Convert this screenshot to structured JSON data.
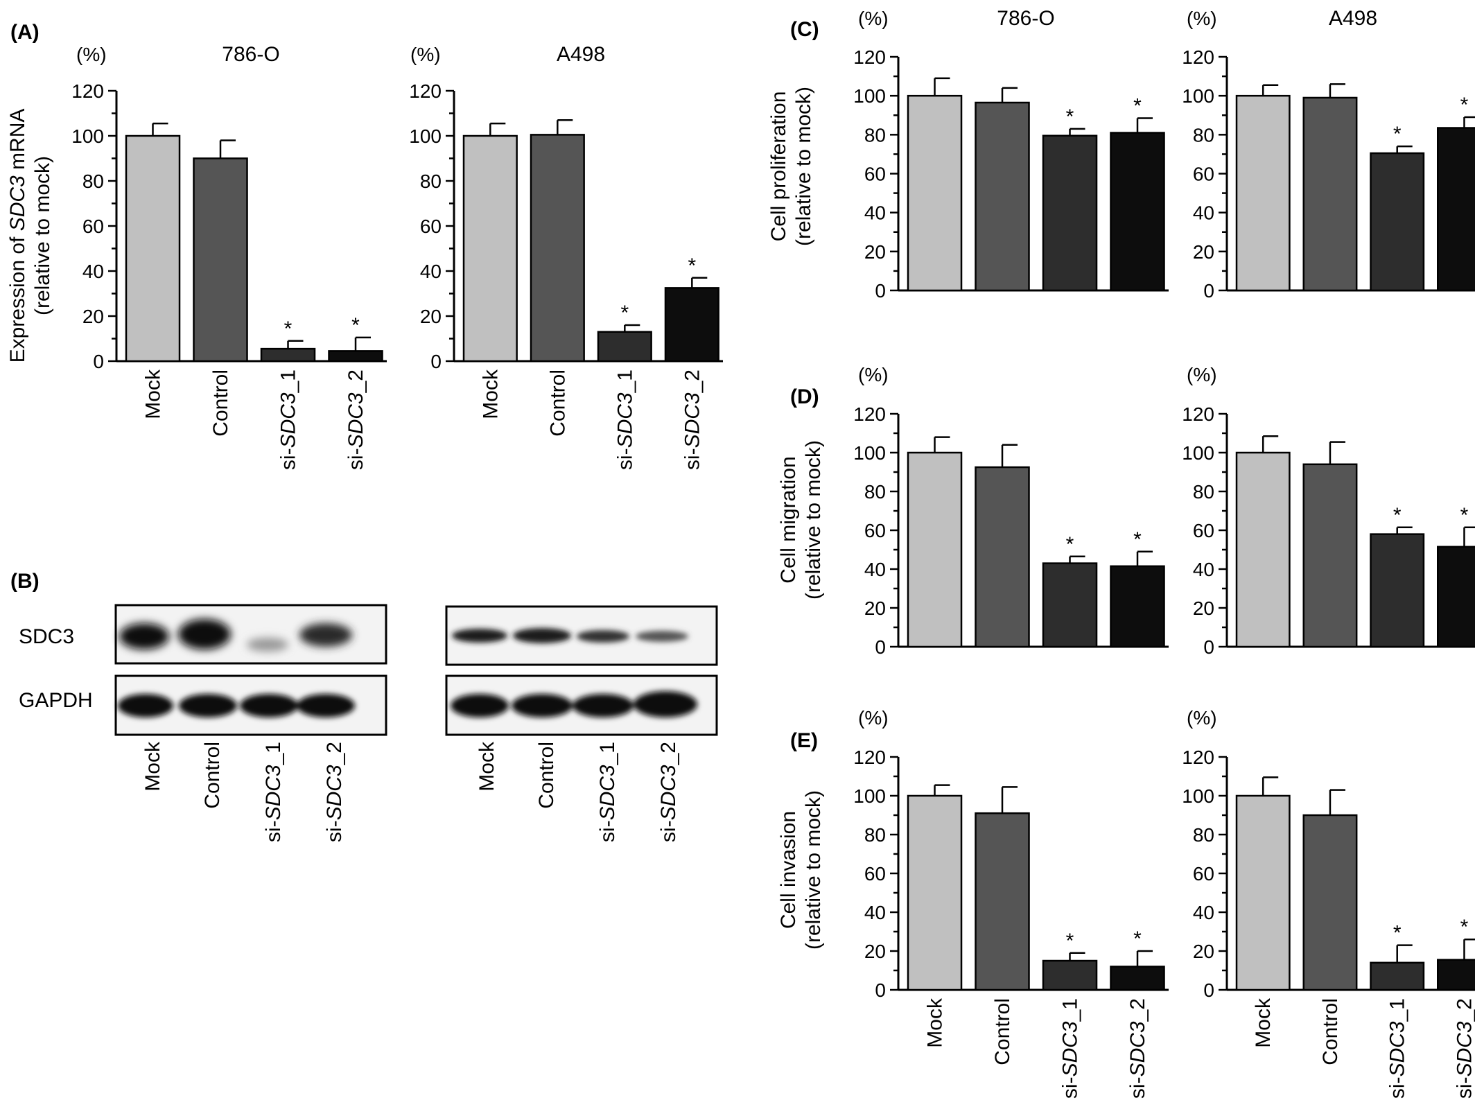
{
  "panels": {
    "A": {
      "letter": "(A)",
      "unit": "(%)",
      "ylabel_pre": "Expression of ",
      "ylabel_gene": "SDC3",
      "ylabel_post": " mRNA",
      "ylabel_line2": "(relative to mock)"
    },
    "B": {
      "letter": "(B)"
    },
    "C": {
      "letter": "(C)",
      "unit": "(%)",
      "ylabel_line1": "Cell proliferation",
      "ylabel_line2": "(relative to mock)"
    },
    "D": {
      "letter": "(D)",
      "unit": "(%)",
      "ylabel_line1": "Cell migration",
      "ylabel_line2": "(relative to mock)"
    },
    "E": {
      "letter": "(E)",
      "unit": "(%)",
      "ylabel_line1": "Cell invasion",
      "ylabel_line2": "(relative to mock)"
    }
  },
  "cell_lines": [
    "786-O",
    "A498"
  ],
  "categories": [
    {
      "pre": "",
      "italic": "",
      "post": "Mock"
    },
    {
      "pre": "",
      "italic": "",
      "post": "Control"
    },
    {
      "pre": "si-",
      "italic": "SDC3",
      "post": "_1"
    },
    {
      "pre": "si-",
      "italic": "SDC3",
      "post": "_2"
    }
  ],
  "star": "*",
  "western_blot": {
    "bands": [
      "SDC3",
      "GAPDH"
    ]
  },
  "colors": {
    "bars": [
      "#c0c0c0",
      "#555555",
      "#2d2d2d",
      "#0d0d0d"
    ]
  },
  "chart_data": [
    {
      "type": "bar",
      "panel": "A",
      "title": "786-O",
      "ylim": [
        0,
        120
      ],
      "yticks": [
        0,
        20,
        40,
        60,
        80,
        100,
        120
      ],
      "values": [
        100,
        90,
        5.5,
        4.5
      ],
      "errors": [
        5.5,
        8,
        3.5,
        6
      ],
      "significant": [
        false,
        false,
        true,
        true
      ]
    },
    {
      "type": "bar",
      "panel": "A",
      "title": "A498",
      "ylim": [
        0,
        120
      ],
      "yticks": [
        0,
        20,
        40,
        60,
        80,
        100,
        120
      ],
      "values": [
        100,
        100.5,
        13,
        32.5
      ],
      "errors": [
        5.5,
        6.5,
        3,
        4.5
      ],
      "significant": [
        false,
        false,
        true,
        true
      ]
    },
    {
      "type": "bar",
      "panel": "C",
      "title": "786-O",
      "ylim": [
        0,
        120
      ],
      "yticks": [
        0,
        20,
        40,
        60,
        80,
        100,
        120
      ],
      "values": [
        100,
        96.5,
        79.5,
        81
      ],
      "errors": [
        9,
        7.5,
        3.5,
        7.5
      ],
      "significant": [
        false,
        false,
        true,
        true
      ]
    },
    {
      "type": "bar",
      "panel": "C",
      "title": "A498",
      "ylim": [
        0,
        120
      ],
      "yticks": [
        0,
        20,
        40,
        60,
        80,
        100,
        120
      ],
      "values": [
        100,
        99,
        70.5,
        83.5
      ],
      "errors": [
        5.5,
        7,
        3.5,
        5.5
      ],
      "significant": [
        false,
        false,
        true,
        true
      ]
    },
    {
      "type": "bar",
      "panel": "D",
      "title": "",
      "ylim": [
        0,
        120
      ],
      "yticks": [
        0,
        20,
        40,
        60,
        80,
        100,
        120
      ],
      "values": [
        100,
        92.5,
        43,
        41.5
      ],
      "errors": [
        8,
        11.5,
        3.5,
        7.5
      ],
      "significant": [
        false,
        false,
        true,
        true
      ]
    },
    {
      "type": "bar",
      "panel": "D",
      "title": "",
      "ylim": [
        0,
        120
      ],
      "yticks": [
        0,
        20,
        40,
        60,
        80,
        100,
        120
      ],
      "values": [
        100,
        94,
        58,
        51.5
      ],
      "errors": [
        8.5,
        11.5,
        3.5,
        10
      ],
      "significant": [
        false,
        false,
        true,
        true
      ]
    },
    {
      "type": "bar",
      "panel": "E",
      "title": "",
      "ylim": [
        0,
        120
      ],
      "yticks": [
        0,
        20,
        40,
        60,
        80,
        100,
        120
      ],
      "values": [
        100,
        91,
        15,
        12
      ],
      "errors": [
        5.5,
        13.5,
        4,
        8
      ],
      "significant": [
        false,
        false,
        true,
        true
      ]
    },
    {
      "type": "bar",
      "panel": "E",
      "title": "",
      "ylim": [
        0,
        120
      ],
      "yticks": [
        0,
        20,
        40,
        60,
        80,
        100,
        120
      ],
      "values": [
        100,
        90,
        14,
        15.5
      ],
      "errors": [
        9.5,
        13,
        9,
        10.5
      ],
      "significant": [
        false,
        false,
        true,
        true
      ]
    }
  ]
}
